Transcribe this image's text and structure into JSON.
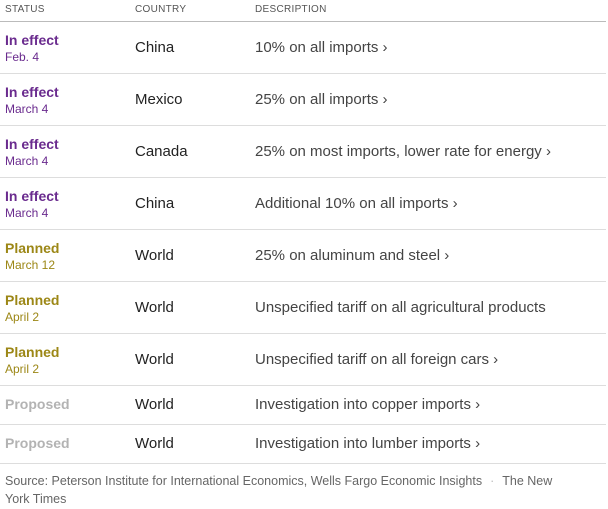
{
  "header": {
    "status": "STATUS",
    "country": "COUNTRY",
    "description": "DESCRIPTION"
  },
  "table": {
    "rows": [
      {
        "status": "In effect",
        "date": "Feb. 4",
        "country": "China",
        "description": "10% on all imports ›",
        "color": "#6a2b8e"
      },
      {
        "status": "In effect",
        "date": "March 4",
        "country": "Mexico",
        "description": "25% on all imports ›",
        "color": "#6a2b8e"
      },
      {
        "status": "In effect",
        "date": "March 4",
        "country": "Canada",
        "description": "25% on most imports, lower rate for energy ›",
        "color": "#6a2b8e"
      },
      {
        "status": "In effect",
        "date": "March 4",
        "country": "China",
        "description": "Additional 10% on all imports ›",
        "color": "#6a2b8e"
      },
      {
        "status": "Planned",
        "date": "March 12",
        "country": "World",
        "description": "25% on aluminum and steel ›",
        "color": "#9c8716"
      },
      {
        "status": "Planned",
        "date": "April 2",
        "country": "World",
        "description": "Unspecified tariff on all agricultural products",
        "color": "#9c8716"
      },
      {
        "status": "Planned",
        "date": "April 2",
        "country": "World",
        "description": "Unspecified tariff on all foreign cars ›",
        "color": "#9c8716"
      },
      {
        "status": "Proposed",
        "country": "World",
        "description": "Investigation into copper imports ›",
        "color": "#b3b3b3"
      },
      {
        "status": "Proposed",
        "country": "World",
        "description": "Investigation into lumber imports ›",
        "color": "#b3b3b3"
      }
    ]
  },
  "footer": {
    "source": "Source: Peterson Institute for International Economics, Wells Fargo Economic Insights",
    "credit": "The New York Times"
  }
}
